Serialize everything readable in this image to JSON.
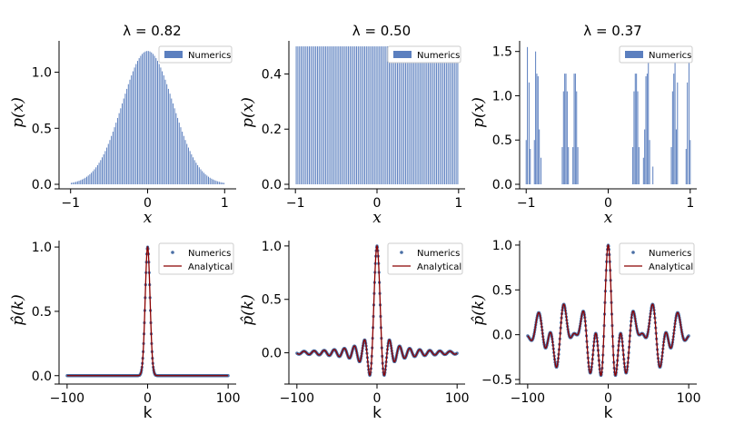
{
  "colors": {
    "bar": "#5b7fbf",
    "numerics_point": "#4a6fa5",
    "analytical_line": "#8b0000"
  },
  "chart_data": [
    {
      "id": "p1",
      "type": "bar",
      "title": "λ = 0.82",
      "xlabel": "x",
      "ylabel": "p(x)",
      "xlim": [
        -1.15,
        1.15
      ],
      "ylim": [
        0,
        1.28
      ],
      "xticks": [
        -1,
        0,
        1
      ],
      "xtick_labels": [
        "−1",
        "0",
        "1"
      ],
      "yticks": [
        0,
        0.5,
        1.0
      ],
      "ytick_labels": [
        "0.0",
        "0.5",
        "1.0"
      ],
      "legend": [
        "Numerics"
      ],
      "legend_loc": "top-right",
      "series": {
        "name": "Numerics",
        "distribution": "gaussian",
        "peak": 1.19,
        "sigma": 0.33,
        "support": [
          -1,
          1
        ],
        "n_bins": 100
      }
    },
    {
      "id": "p2",
      "type": "bar",
      "title": "λ = 0.50",
      "xlabel": "x",
      "ylabel": "p(x)",
      "xlim": [
        -1.08,
        1.08
      ],
      "ylim": [
        0,
        0.52
      ],
      "xticks": [
        -1,
        0,
        1
      ],
      "xtick_labels": [
        "−1",
        "0",
        "1"
      ],
      "yticks": [
        0,
        0.2,
        0.4
      ],
      "ytick_labels": [
        "0.0",
        "0.2",
        "0.4"
      ],
      "legend": [
        "Numerics"
      ],
      "legend_loc": "top-right",
      "series": {
        "name": "Numerics",
        "distribution": "uniform",
        "value": 0.5,
        "support": [
          -1,
          1
        ],
        "n_bins": 100
      }
    },
    {
      "id": "p3",
      "type": "bar",
      "title": "λ = 0.37",
      "xlabel": "x",
      "ylabel": "p(x)",
      "xlim": [
        -1.08,
        1.08
      ],
      "ylim": [
        0,
        1.62
      ],
      "xticks": [
        -1,
        0,
        1
      ],
      "xtick_labels": [
        "−1",
        "0",
        "1"
      ],
      "yticks": [
        0,
        0.5,
        1.0,
        1.5
      ],
      "ytick_labels": [
        "0.0",
        "0.5",
        "1.0",
        "1.5"
      ],
      "legend": [
        "Numerics"
      ],
      "legend_loc": "top-right",
      "series": {
        "name": "Numerics",
        "distribution": "cantor-like",
        "bars": [
          [
            -1.0,
            0.5
          ],
          [
            -0.985,
            1.55
          ],
          [
            -0.965,
            1.15
          ],
          [
            -0.95,
            0.4
          ],
          [
            -0.9,
            0.5
          ],
          [
            -0.885,
            1.5
          ],
          [
            -0.87,
            1.25
          ],
          [
            -0.855,
            1.22
          ],
          [
            -0.84,
            0.62
          ],
          [
            -0.82,
            0.3
          ],
          [
            -0.56,
            0.42
          ],
          [
            -0.545,
            1.05
          ],
          [
            -0.53,
            1.25
          ],
          [
            -0.515,
            1.25
          ],
          [
            -0.5,
            1.05
          ],
          [
            -0.485,
            0.42
          ],
          [
            -0.43,
            0.42
          ],
          [
            -0.415,
            1.25
          ],
          [
            -0.4,
            1.25
          ],
          [
            -0.385,
            1.05
          ],
          [
            -0.37,
            0.42
          ],
          [
            0.3,
            0.42
          ],
          [
            0.315,
            1.05
          ],
          [
            0.33,
            1.25
          ],
          [
            0.345,
            1.25
          ],
          [
            0.36,
            1.05
          ],
          [
            0.375,
            0.42
          ],
          [
            0.43,
            0.3
          ],
          [
            0.445,
            0.62
          ],
          [
            0.46,
            1.22
          ],
          [
            0.475,
            1.25
          ],
          [
            0.49,
            1.5
          ],
          [
            0.505,
            0.5
          ],
          [
            0.545,
            0.2
          ],
          [
            0.77,
            0.42
          ],
          [
            0.785,
            1.05
          ],
          [
            0.8,
            1.25
          ],
          [
            0.815,
            1.5
          ],
          [
            0.83,
            0.62
          ],
          [
            0.845,
            1.15
          ],
          [
            0.95,
            0.4
          ],
          [
            0.965,
            1.15
          ],
          [
            0.985,
            1.55
          ],
          [
            1.0,
            0.5
          ]
        ]
      }
    },
    {
      "id": "p4",
      "type": "line",
      "xlabel": "k",
      "ylabel": "p̂(k)",
      "xlim": [
        -110,
        110
      ],
      "ylim": [
        -0.03,
        1.05
      ],
      "xticks": [
        -100,
        0,
        100
      ],
      "xtick_labels": [
        "−100",
        "0",
        "100"
      ],
      "yticks": [
        0,
        0.5,
        1.0
      ],
      "ytick_labels": [
        "0.0",
        "0.5",
        "1.0"
      ],
      "legend": [
        "Numerics",
        "Analytical"
      ],
      "legend_loc": "top-right",
      "series": [
        {
          "name": "Numerics",
          "kind": "points",
          "model": "gaussian",
          "sigma_k": 3.0,
          "k_range": [
            -100,
            100
          ]
        },
        {
          "name": "Analytical",
          "kind": "line",
          "model": "gaussian",
          "sigma_k": 3.0,
          "k_range": [
            -100,
            100
          ]
        }
      ]
    },
    {
      "id": "p5",
      "type": "line",
      "xlabel": "k",
      "ylabel": "p̂(k)",
      "xlim": [
        -110,
        110
      ],
      "ylim": [
        -0.25,
        1.05
      ],
      "xticks": [
        -100,
        0,
        100
      ],
      "xtick_labels": [
        "−100",
        "0",
        "100"
      ],
      "yticks": [
        0,
        0.5,
        1.0
      ],
      "ytick_labels": [
        "0.0",
        "0.5",
        "1.0"
      ],
      "legend": [
        "Numerics",
        "Analytical"
      ],
      "legend_loc": "top-right",
      "series": [
        {
          "name": "Numerics",
          "kind": "points",
          "model": "sinc",
          "k_range": [
            -100,
            100
          ]
        },
        {
          "name": "Analytical",
          "kind": "line",
          "model": "sinc",
          "k_range": [
            -100,
            100
          ]
        }
      ]
    },
    {
      "id": "p6",
      "type": "line",
      "xlabel": "k",
      "ylabel": "p̂(k)",
      "xlim": [
        -110,
        110
      ],
      "ylim": [
        -0.5,
        1.05
      ],
      "xticks": [
        -100,
        0,
        100
      ],
      "xtick_labels": [
        "−100",
        "0",
        "100"
      ],
      "yticks": [
        -0.5,
        0,
        0.5,
        1.0
      ],
      "ytick_labels": [
        "−0.5",
        "0.0",
        "0.5",
        "1.0"
      ],
      "legend": [
        "Numerics",
        "Analytical"
      ],
      "legend_loc": "top-right",
      "series": [
        {
          "name": "Numerics",
          "kind": "points",
          "model": "bernoulli-convolution",
          "lambda": 0.37,
          "k_range": [
            -100,
            100
          ]
        },
        {
          "name": "Analytical",
          "kind": "line",
          "model": "bernoulli-convolution",
          "lambda": 0.37,
          "k_range": [
            -100,
            100
          ]
        }
      ]
    }
  ]
}
